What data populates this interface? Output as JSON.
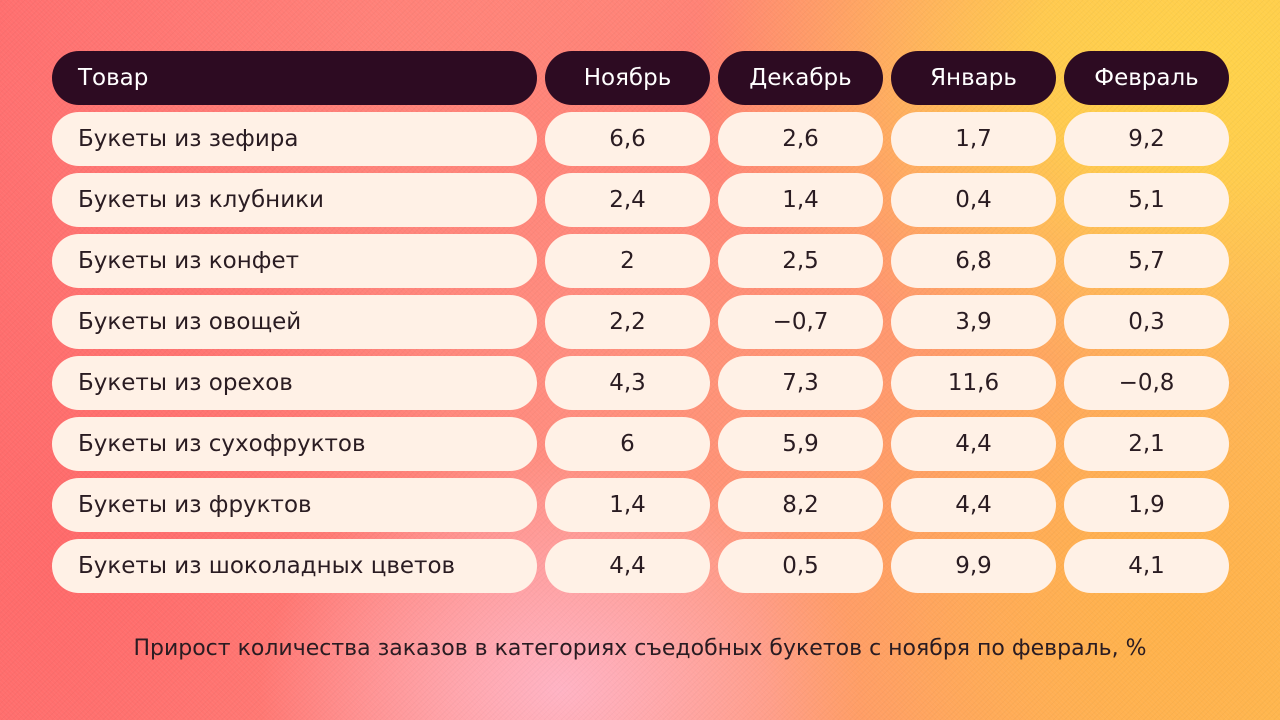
{
  "chart_data": {
    "type": "table",
    "title": "Прирост количества заказов в категориях съедобных букетов с ноября по февраль, %",
    "columns": [
      "Товар",
      "Ноябрь",
      "Декабрь",
      "Январь",
      "Февраль"
    ],
    "rows": [
      [
        "Букеты из зефира",
        "6,6",
        "2,6",
        "1,7",
        "9,2"
      ],
      [
        "Букеты из клубники",
        "2,4",
        "1,4",
        "0,4",
        "5,1"
      ],
      [
        "Букеты из конфет",
        "2",
        "2,5",
        "6,8",
        "5,7"
      ],
      [
        "Букеты из овощей",
        "2,2",
        "−0,7",
        "3,9",
        "0,3"
      ],
      [
        "Букеты из орехов",
        "4,3",
        "7,3",
        "11,6",
        "−0,8"
      ],
      [
        "Букеты из сухофруктов",
        "6",
        "5,9",
        "4,4",
        "2,1"
      ],
      [
        "Букеты из фруктов",
        "1,4",
        "8,2",
        "4,4",
        "1,9"
      ],
      [
        "Букеты из шоколадных цветов",
        "4,4",
        "0,5",
        "9,9",
        "4,1"
      ]
    ]
  },
  "colors": {
    "header_bg": "#2d0b22",
    "header_text": "#ffffff",
    "cell_bg": "#fff1e6",
    "cell_text": "#2a1c22"
  }
}
